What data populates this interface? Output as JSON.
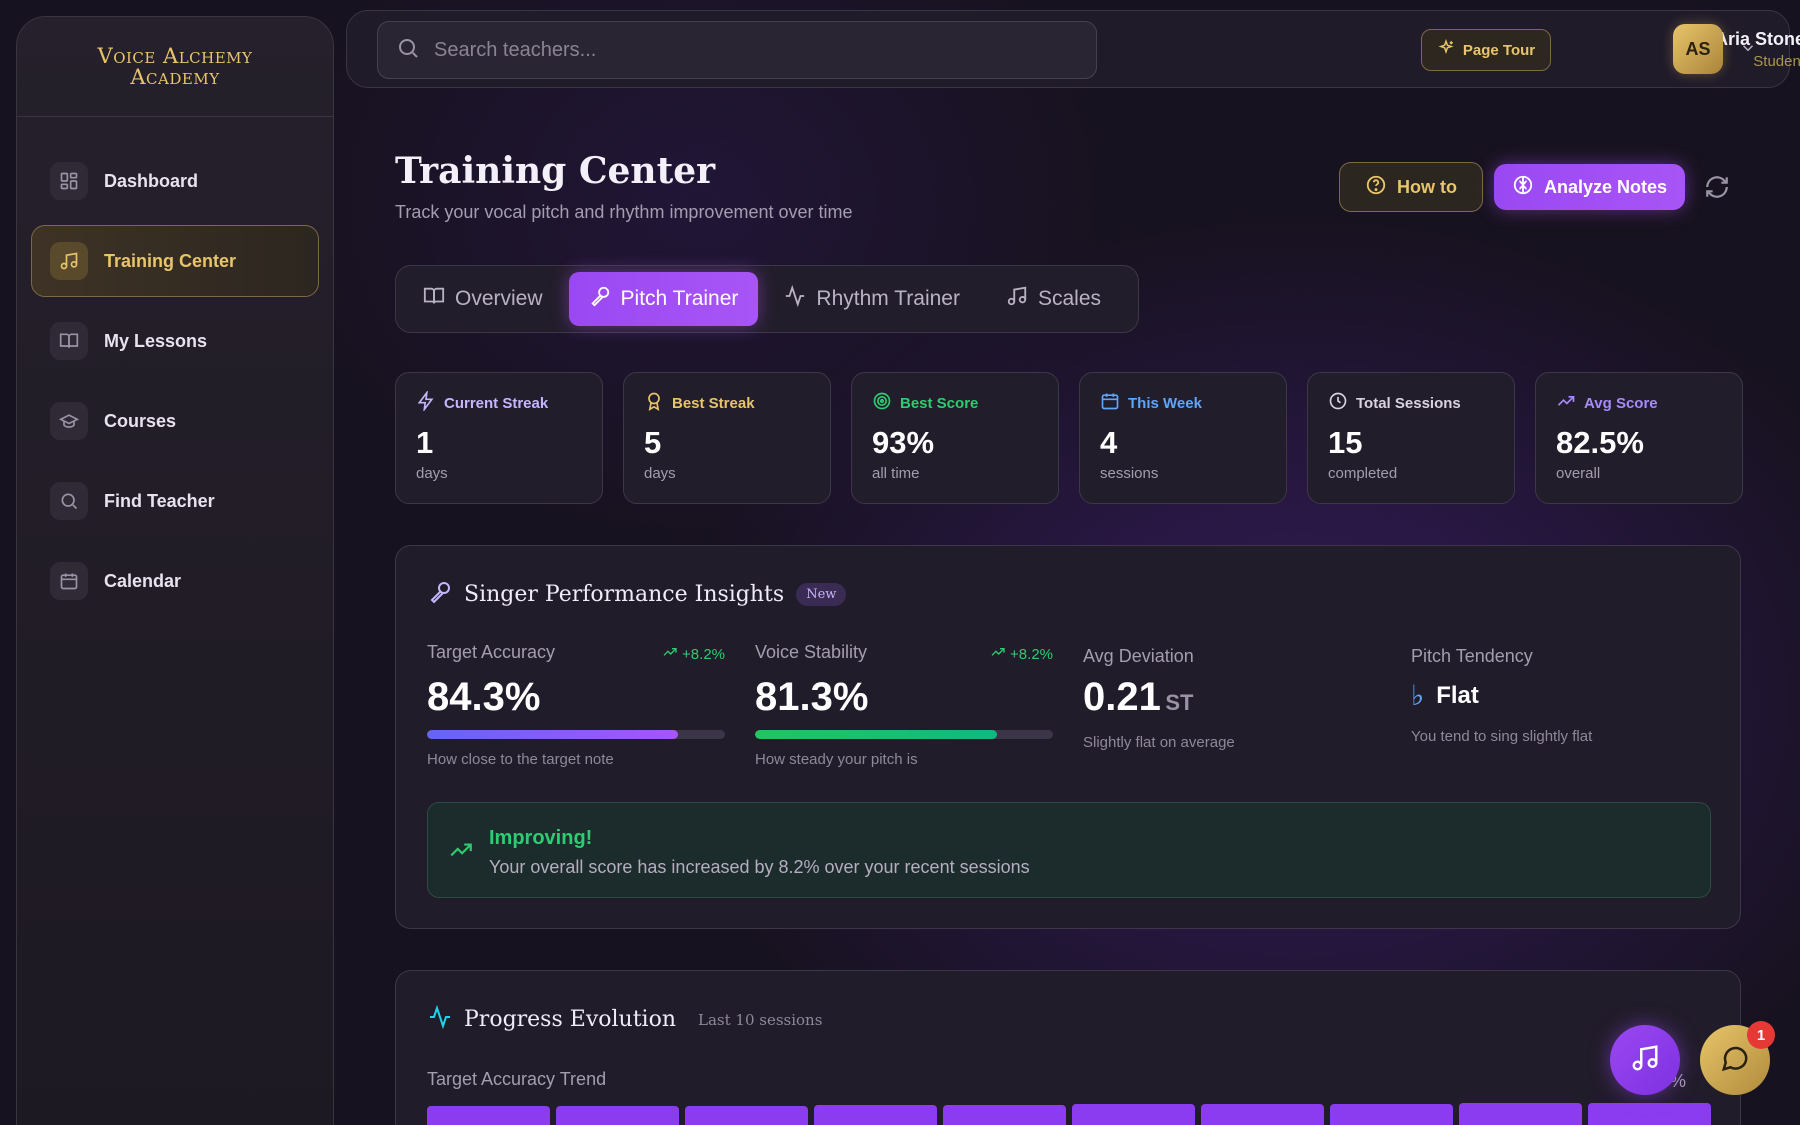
{
  "brand": {
    "line1": "Voice Alchemy",
    "line2": "Academy"
  },
  "sidebar": {
    "items": [
      {
        "label": "Dashboard",
        "icon": "dashboard-icon"
      },
      {
        "label": "Training Center",
        "icon": "music-note-icon",
        "active": true
      },
      {
        "label": "My Lessons",
        "icon": "book-icon"
      },
      {
        "label": "Courses",
        "icon": "graduation-cap-icon"
      },
      {
        "label": "Find Teacher",
        "icon": "search-icon"
      },
      {
        "label": "Calendar",
        "icon": "calendar-icon"
      }
    ]
  },
  "topbar": {
    "search_placeholder": "Search teachers...",
    "page_tour_label": "Page Tour",
    "user_name": "Aria Stone",
    "user_role": "Student",
    "avatar_initials": "AS"
  },
  "header": {
    "title": "Training Center",
    "subtitle": "Track your vocal pitch and rhythm improvement over time",
    "how_to_label": "How to",
    "analyze_label": "Analyze Notes"
  },
  "tabs": [
    {
      "label": "Overview",
      "icon": "book-icon"
    },
    {
      "label": "Pitch Trainer",
      "icon": "microphone-icon",
      "active": true
    },
    {
      "label": "Rhythm Trainer",
      "icon": "activity-icon"
    },
    {
      "label": "Scales",
      "icon": "music-note-icon"
    }
  ],
  "stats": [
    {
      "label": "Current Streak",
      "value": "1",
      "unit": "days",
      "color": "#c4b5fd",
      "icon": "lightning-icon"
    },
    {
      "label": "Best Streak",
      "value": "5",
      "unit": "days",
      "color": "#e8c56a",
      "icon": "award-icon"
    },
    {
      "label": "Best Score",
      "value": "93%",
      "unit": "all time",
      "color": "#2ecc71",
      "icon": "target-icon"
    },
    {
      "label": "This Week",
      "value": "4",
      "unit": "sessions",
      "color": "#60a5fa",
      "icon": "calendar-icon"
    },
    {
      "label": "Total Sessions",
      "value": "15",
      "unit": "completed",
      "color": "#d8d2e2",
      "icon": "clock-icon"
    },
    {
      "label": "Avg Score",
      "value": "82.5%",
      "unit": "overall",
      "color": "#a78bfa",
      "icon": "trending-up-icon"
    }
  ],
  "insights": {
    "title": "Singer Performance Insights",
    "badge": "New",
    "target_accuracy": {
      "label": "Target Accuracy",
      "change": "+8.2%",
      "value": "84.3%",
      "level": 0.843,
      "note": "How close to the target note"
    },
    "voice_stability": {
      "label": "Voice Stability",
      "change": "+8.2%",
      "value": "81.3%",
      "level": 0.813,
      "note": "How steady your pitch is"
    },
    "avg_deviation": {
      "label": "Avg Deviation",
      "value": "0.21",
      "unit": "ST",
      "note": "Slightly flat on average"
    },
    "pitch_tendency": {
      "label": "Pitch Tendency",
      "symbol": "♭",
      "value": "Flat",
      "note": "You tend to sing slightly flat"
    },
    "improving": {
      "title": "Improving!",
      "text": "Your overall score has increased by 8.2% over your recent sessions"
    }
  },
  "progress": {
    "title": "Progress Evolution",
    "subtitle": "Last 10 sessions",
    "trend_label": "Target Accuracy Trend",
    "trend_value": "0%",
    "bar_levels": [
      0.75,
      0.78,
      0.78,
      0.8,
      0.8,
      0.82,
      0.84,
      0.84,
      0.86,
      0.88
    ]
  },
  "floating": {
    "chat_badge": "1"
  },
  "colors": {
    "accent": "#a855f7",
    "gold": "#e8c56a",
    "success": "#2ecc71"
  }
}
